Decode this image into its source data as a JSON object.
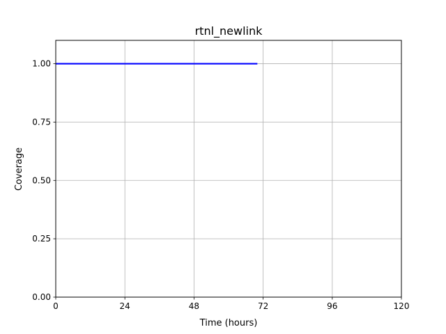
{
  "chart_data": {
    "type": "line",
    "title": "rtnl_newlink",
    "xlabel": "Time (hours)",
    "ylabel": "Coverage",
    "xlim": [
      0,
      120
    ],
    "ylim": [
      0,
      1.1
    ],
    "xticks": [
      0,
      24,
      48,
      72,
      96,
      120
    ],
    "xtick_labels": [
      "0",
      "24",
      "48",
      "72",
      "96",
      "120"
    ],
    "yticks": [
      0,
      0.25,
      0.5,
      0.75,
      1.0
    ],
    "ytick_labels": [
      "0.00",
      "0.25",
      "0.50",
      "0.75",
      "1.00"
    ],
    "grid": true,
    "series": [
      {
        "color": "#0000ff",
        "x": [
          0,
          70
        ],
        "y": [
          1.0,
          1.0
        ]
      }
    ]
  }
}
